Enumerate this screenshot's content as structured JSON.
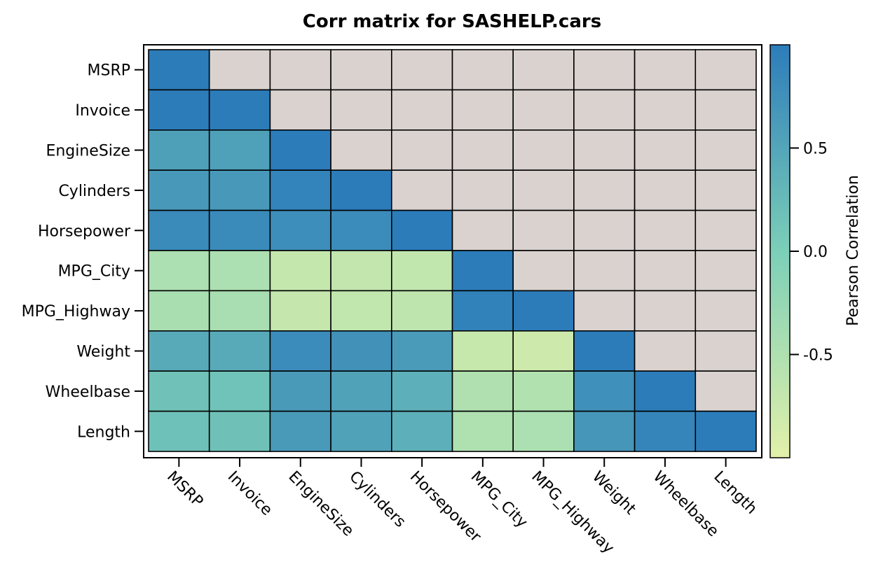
{
  "chart_data": {
    "type": "heatmap",
    "title": "Corr matrix for SASHELP.cars",
    "variables": [
      "MSRP",
      "Invoice",
      "EngineSize",
      "Cylinders",
      "Horsepower",
      "MPG_City",
      "MPG_Highway",
      "Weight",
      "Wheelbase",
      "Length"
    ],
    "lower_triangle_values": [
      [
        1.0
      ],
      [
        0.999,
        1.0
      ],
      [
        0.572,
        0.565,
        1.0
      ],
      [
        0.65,
        0.646,
        0.908,
        1.0
      ],
      [
        0.826,
        0.824,
        0.787,
        0.811,
        1.0
      ],
      [
        -0.475,
        -0.47,
        -0.709,
        -0.684,
        -0.677,
        1.0
      ],
      [
        -0.44,
        -0.436,
        -0.717,
        -0.676,
        -0.647,
        0.941,
        1.0
      ],
      [
        0.448,
        0.443,
        0.808,
        0.742,
        0.631,
        -0.738,
        -0.791,
        1.0
      ],
      [
        0.152,
        0.148,
        0.637,
        0.547,
        0.387,
        -0.507,
        -0.525,
        0.761,
        1.0
      ],
      [
        0.172,
        0.167,
        0.637,
        0.548,
        0.382,
        -0.502,
        -0.466,
        0.69,
        0.889,
        1.0
      ]
    ],
    "upper_triangle_color": "#d9d2cf",
    "colorbar": {
      "label": "Pearson Correlation",
      "range": [
        -1,
        1
      ],
      "ticks": [
        0.5,
        0.0,
        -0.5
      ],
      "tick_labels": [
        "0.5",
        "0.0",
        "-0.5"
      ],
      "colors": [
        "#e2f1a9",
        "#7ccfb8",
        "#2c7cba"
      ]
    }
  }
}
